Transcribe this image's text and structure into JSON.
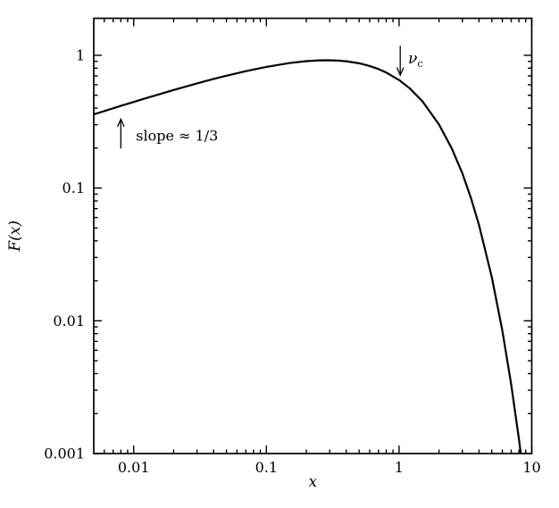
{
  "figure": {
    "background_color": "#ffffff",
    "line_color": "#000000"
  },
  "chart_data": {
    "type": "line",
    "title": "",
    "xlabel": "x",
    "ylabel": "F(x)",
    "x_scale": "log",
    "y_scale": "log",
    "xlim": [
      0.005,
      10
    ],
    "ylim": [
      0.001,
      1.9
    ],
    "grid": false,
    "legend": "none",
    "x_major_ticks": [
      {
        "value": 0.01,
        "label": "0.01"
      },
      {
        "value": 0.1,
        "label": "0.1"
      },
      {
        "value": 1,
        "label": "1"
      },
      {
        "value": 10,
        "label": "10"
      }
    ],
    "y_major_ticks": [
      {
        "value": 0.001,
        "label": "0.001"
      },
      {
        "value": 0.01,
        "label": "0.01"
      },
      {
        "value": 0.1,
        "label": "0.1"
      },
      {
        "value": 1,
        "label": "1"
      }
    ],
    "series": [
      {
        "name": "F(x)",
        "color": "#000000",
        "points": [
          [
            0.005,
            0.359
          ],
          [
            0.006,
            0.38
          ],
          [
            0.008,
            0.416
          ],
          [
            0.01,
            0.445
          ],
          [
            0.012,
            0.471
          ],
          [
            0.015,
            0.503
          ],
          [
            0.02,
            0.548
          ],
          [
            0.03,
            0.614
          ],
          [
            0.04,
            0.663
          ],
          [
            0.05,
            0.702
          ],
          [
            0.07,
            0.76
          ],
          [
            0.1,
            0.818
          ],
          [
            0.15,
            0.875
          ],
          [
            0.2,
            0.903
          ],
          [
            0.25,
            0.916
          ],
          [
            0.29,
            0.918
          ],
          [
            0.35,
            0.912
          ],
          [
            0.4,
            0.902
          ],
          [
            0.5,
            0.871
          ],
          [
            0.6,
            0.831
          ],
          [
            0.7,
            0.788
          ],
          [
            0.8,
            0.742
          ],
          [
            1.0,
            0.651
          ],
          [
            1.2,
            0.565
          ],
          [
            1.5,
            0.45
          ],
          [
            2.0,
            0.301
          ],
          [
            2.5,
            0.198
          ],
          [
            3.0,
            0.129
          ],
          [
            3.5,
            0.0827
          ],
          [
            4.0,
            0.0528
          ],
          [
            5.0,
            0.0213
          ],
          [
            6.0,
            0.00844
          ],
          [
            7.0,
            0.00331
          ],
          [
            8.0,
            0.00129
          ],
          [
            8.5,
            0.000804
          ],
          [
            9.0,
            0.0005
          ]
        ]
      }
    ],
    "annotations": [
      {
        "type": "arrow-up",
        "x": 0.008,
        "y_from": 0.2,
        "y_to": 0.33,
        "label": "slope ≈ 1/3",
        "label_x": 0.0104,
        "label_y": 0.248
      },
      {
        "type": "arrow-down",
        "x": 1.02,
        "y_from": 1.17,
        "y_to": 0.71,
        "label_main": "ν",
        "label_sub": "c",
        "label_x": 1.17,
        "label_y": 0.95
      }
    ]
  }
}
